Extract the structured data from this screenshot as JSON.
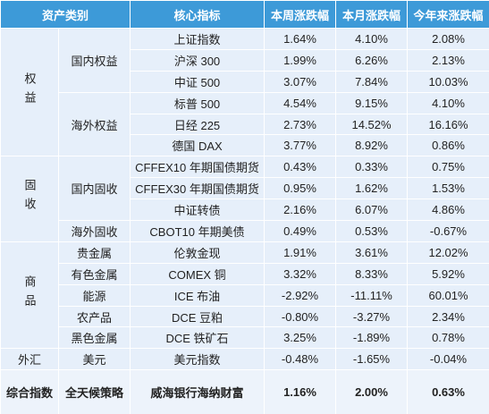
{
  "table": {
    "headers": [
      "资产类别",
      "核心指标",
      "本周涨跌幅",
      "本月涨跌幅",
      "今年来涨跌幅"
    ],
    "groups": [
      {
        "name": "权益",
        "subgroups": [
          {
            "name": "国内权益",
            "rows": [
              [
                "上证指数",
                "1.64%",
                "4.10%",
                "2.08%"
              ],
              [
                "沪深 300",
                "1.99%",
                "6.26%",
                "2.13%"
              ],
              [
                "中证 500",
                "3.07%",
                "7.84%",
                "10.03%"
              ]
            ]
          },
          {
            "name": "海外权益",
            "rows": [
              [
                "标普 500",
                "4.54%",
                "9.15%",
                "4.10%"
              ],
              [
                "日经 225",
                "2.73%",
                "14.52%",
                "16.16%"
              ],
              [
                "德国 DAX",
                "3.77%",
                "8.92%",
                "0.86%"
              ]
            ]
          }
        ]
      },
      {
        "name": "固收",
        "subgroups": [
          {
            "name": "国内固收",
            "rows": [
              [
                "CFFEX10 年期国债期货",
                "0.43%",
                "0.33%",
                "0.75%"
              ],
              [
                "CFFEX30 年期国债期货",
                "0.95%",
                "1.62%",
                "1.53%"
              ],
              [
                "中证转债",
                "2.16%",
                "6.07%",
                "4.86%"
              ]
            ]
          },
          {
            "name": "海外固收",
            "rows": [
              [
                "CBOT10 年期美债",
                "0.49%",
                "0.53%",
                "-0.67%"
              ]
            ]
          }
        ]
      },
      {
        "name": "商品",
        "subgroups": [
          {
            "name": "贵金属",
            "rows": [
              [
                "伦敦金现",
                "1.91%",
                "3.61%",
                "12.02%"
              ]
            ]
          },
          {
            "name": "有色金属",
            "rows": [
              [
                "COMEX 铜",
                "3.32%",
                "8.33%",
                "5.92%"
              ]
            ]
          },
          {
            "name": "能源",
            "rows": [
              [
                "ICE 布油",
                "-2.92%",
                "-11.11%",
                "60.01%"
              ]
            ]
          },
          {
            "name": "农产品",
            "rows": [
              [
                "DCE 豆粕",
                "-0.80%",
                "-3.27%",
                "2.34%"
              ]
            ]
          },
          {
            "name": "黑色金属",
            "rows": [
              [
                "DCE 铁矿石",
                "3.25%",
                "-1.89%",
                "0.78%"
              ]
            ]
          }
        ]
      },
      {
        "name": "外汇",
        "subgroups": [
          {
            "name": "美元",
            "rows": [
              [
                "美元指数",
                "-0.48%",
                "-1.65%",
                "-0.04%"
              ]
            ]
          }
        ]
      }
    ],
    "summary": [
      "综合指数",
      "全天候策略",
      "威海银行海纳财富",
      "1.16%",
      "2.00%",
      "0.63%"
    ]
  }
}
